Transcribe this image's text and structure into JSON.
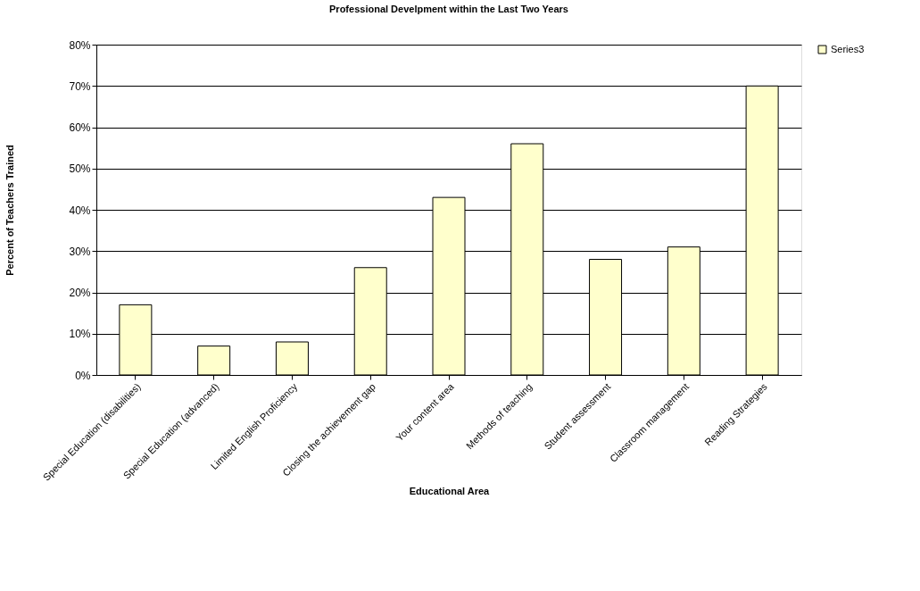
{
  "chart_data": {
    "type": "bar",
    "title": "Professional Develpment within the Last Two Years",
    "xlabel": "Educational Area",
    "ylabel": "Percent of Teachers Trained",
    "categories": [
      "Special Education (disabilities)",
      "Special Education (advanced)",
      "Limited English Proficiency",
      "Closing the achievement gap",
      "Your content area",
      "Methods of teaching",
      "Student assessment",
      "Classroom management",
      "Reading Strategies"
    ],
    "series": [
      {
        "name": "Series3",
        "color": "#ffffcc",
        "values": [
          17,
          7,
          8,
          26,
          43,
          56,
          28,
          31,
          70
        ]
      }
    ],
    "ylim": [
      0,
      80
    ],
    "yticks": [
      {
        "value": 0,
        "label": "0%"
      },
      {
        "value": 10,
        "label": "10%"
      },
      {
        "value": 20,
        "label": "20%"
      },
      {
        "value": 30,
        "label": "30%"
      },
      {
        "value": 40,
        "label": "40%"
      },
      {
        "value": 50,
        "label": "50%"
      },
      {
        "value": 60,
        "label": "60%"
      },
      {
        "value": 70,
        "label": "70%"
      },
      {
        "value": 80,
        "label": "80%"
      }
    ],
    "grid": "y",
    "legend": "right"
  }
}
